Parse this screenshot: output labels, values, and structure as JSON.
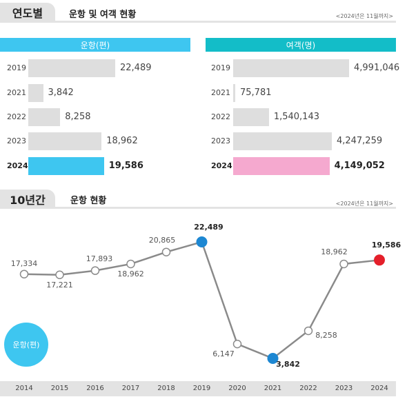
{
  "section1": {
    "tab": "연도별",
    "title": "운항 및 여객 현황",
    "note": "<2024년은 11월까지>"
  },
  "section2": {
    "tab": "10년간",
    "title": "운항 현황",
    "note": "<2024년은 11월까지>"
  },
  "colors": {
    "flights": "#3ec6f0",
    "passengers": "#13bdc8",
    "pink": "#f5a9cf",
    "blue": "#1d87d2",
    "red": "#e41f2a",
    "gray": "#dedede"
  },
  "chart_data": [
    {
      "type": "bar",
      "title": "운항(편)",
      "categories": [
        "2019",
        "2021",
        "2022",
        "2023",
        "2024"
      ],
      "values": [
        22489,
        3842,
        8258,
        18962,
        19586
      ],
      "labels": [
        "22,489",
        "3,842",
        "8,258",
        "18,962",
        "19,586"
      ],
      "highlight": "2024"
    },
    {
      "type": "bar",
      "title": "여객(명)",
      "categories": [
        "2019",
        "2021",
        "2022",
        "2023",
        "2024"
      ],
      "values": [
        4991046,
        75781,
        1540143,
        4247259,
        4149052
      ],
      "labels": [
        "4,991,046",
        "75,781",
        "1,540,143",
        "4,247,259",
        "4,149,052"
      ],
      "highlight": "2024"
    },
    {
      "type": "line",
      "title": "운항(편)",
      "x": [
        "2014",
        "2015",
        "2016",
        "2017",
        "2018",
        "2019",
        "2020",
        "2021",
        "2022",
        "2023",
        "2024"
      ],
      "values": [
        17334,
        17221,
        17893,
        18962,
        20865,
        22489,
        6147,
        3842,
        8258,
        18962,
        19586
      ],
      "labels": [
        "17,334",
        "17,221",
        "17,893",
        "18,962",
        "20,865",
        "22,489",
        "6,147",
        "3,842",
        "8,258",
        "18,962",
        "19,586"
      ],
      "highlights": {
        "2019": "blue",
        "2021": "blue",
        "2024": "red"
      }
    }
  ]
}
